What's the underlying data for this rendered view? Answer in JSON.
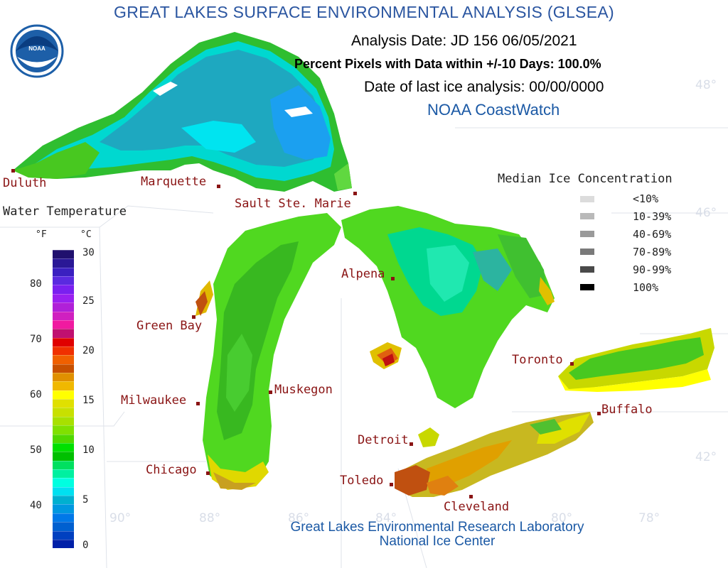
{
  "title": "GREAT LAKES SURFACE ENVIRONMENTAL ANALYSIS (GLSEA)",
  "analysis_date": "Analysis Date:  JD 156 06/05/2021",
  "percent_pixels": "Percent Pixels with Data within +/-10 Days: 100.0%",
  "last_ice": "Date of last ice analysis: 00/00/0000",
  "coastwatch": "NOAA CoastWatch",
  "logo_text": "NOAA",
  "credits": {
    "line1": "Great Lakes Environmental Research Laboratory",
    "line2": "National Ice Center"
  },
  "water_legend": {
    "title": "Water Temperature",
    "unit_f": "°F",
    "unit_c": "°C",
    "f_ticks": [
      "80",
      "70",
      "60",
      "50",
      "40"
    ],
    "c_ticks": [
      "30",
      "25",
      "20",
      "15",
      "10",
      "5",
      "0"
    ],
    "colors": [
      "#20106e",
      "#2a1896",
      "#3a20c0",
      "#5a2ae0",
      "#7a20f0",
      "#9a20f0",
      "#b020d8",
      "#d020c0",
      "#f01aa0",
      "#c01070",
      "#e00000",
      "#f03000",
      "#f06000",
      "#c85000",
      "#e09000",
      "#f0b800",
      "#ffff00",
      "#e0e000",
      "#c8e000",
      "#a8e000",
      "#80e000",
      "#50d800",
      "#00e000",
      "#00c000",
      "#00e060",
      "#00f0a0",
      "#00ffe0",
      "#00e0f0",
      "#00b0d0",
      "#0098e0",
      "#0078e8",
      "#0060d0",
      "#0040c0",
      "#0020a8"
    ]
  },
  "ice_legend": {
    "title": "Median Ice Concentration",
    "items": [
      {
        "label": "<10%",
        "color": "#dcdcdc"
      },
      {
        "label": "10-39%",
        "color": "#b9b9b9"
      },
      {
        "label": "40-69%",
        "color": "#9a9a9a"
      },
      {
        "label": "70-89%",
        "color": "#7a7a7a"
      },
      {
        "label": "90-99%",
        "color": "#4a4a4a"
      },
      {
        "label": "100%",
        "color": "#000000"
      }
    ]
  },
  "cities": [
    {
      "name": "Duluth"
    },
    {
      "name": "Marquette"
    },
    {
      "name": "Sault Ste. Marie"
    },
    {
      "name": "Green Bay"
    },
    {
      "name": "Alpena"
    },
    {
      "name": "Milwaukee"
    },
    {
      "name": "Muskegon"
    },
    {
      "name": "Chicago"
    },
    {
      "name": "Detroit"
    },
    {
      "name": "Toledo"
    },
    {
      "name": "Cleveland"
    },
    {
      "name": "Toronto"
    },
    {
      "name": "Buffalo"
    }
  ],
  "grid_labels": {
    "lat_48": "48°",
    "lat_46": "46°",
    "lat_42": "42°",
    "lon_90": "90°",
    "lon_88": "88°",
    "lon_86": "86°",
    "lon_84": "84°",
    "lon_80": "80°",
    "lon_78": "78°"
  }
}
